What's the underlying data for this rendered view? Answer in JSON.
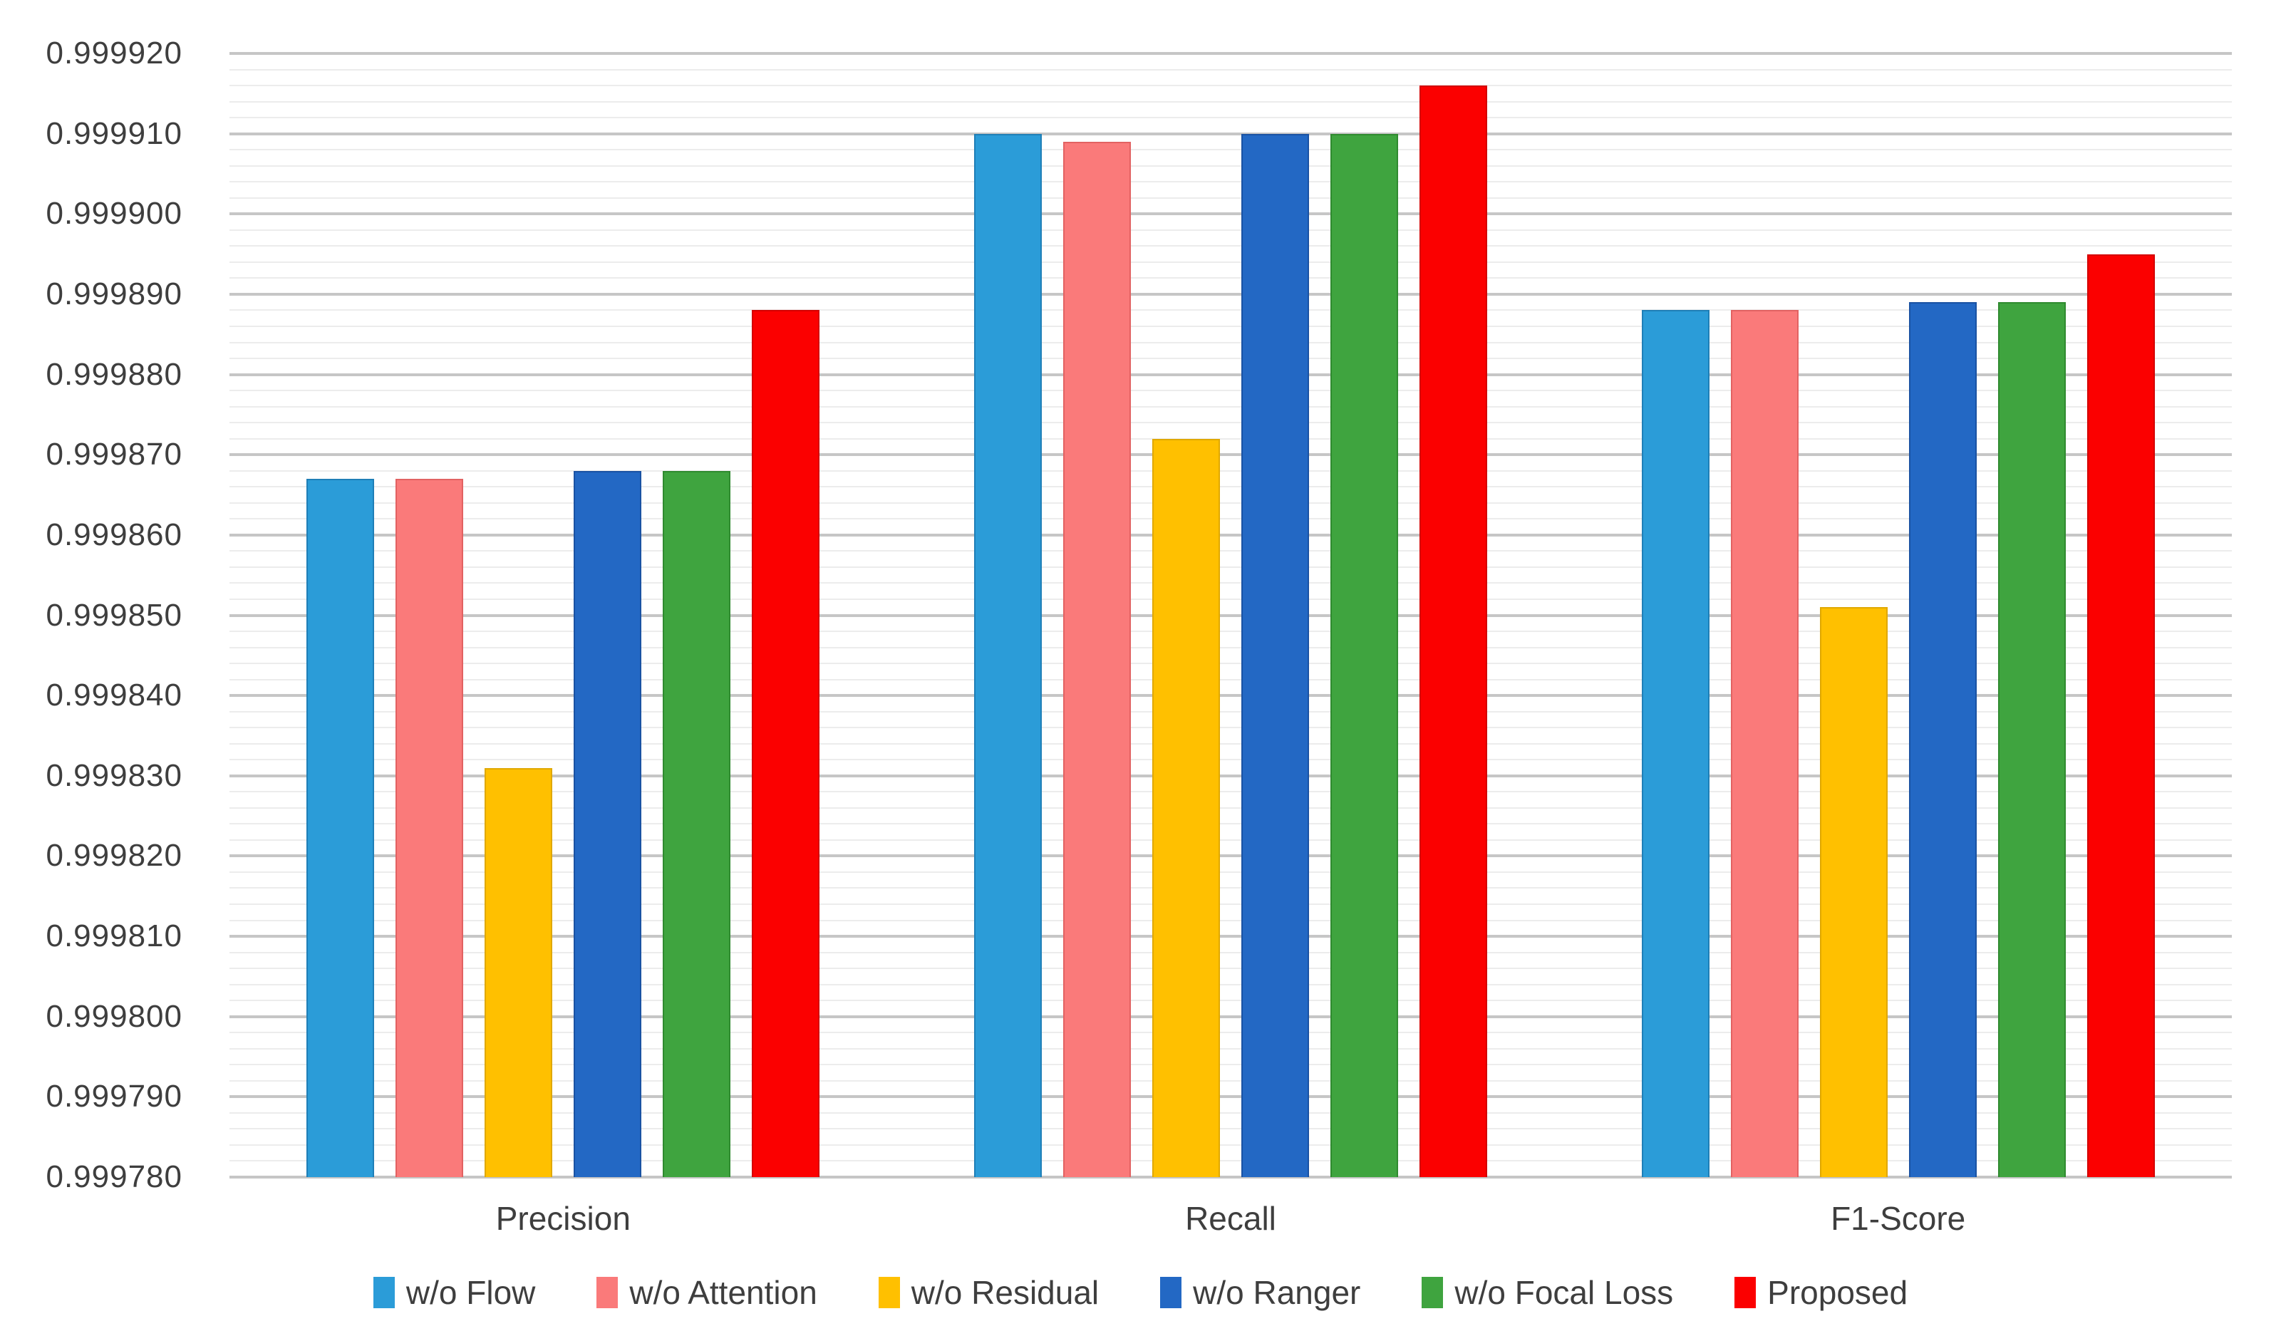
{
  "chart_data": {
    "type": "bar",
    "title": "",
    "categories": [
      "Precision",
      "Recall",
      "F1-Score"
    ],
    "series": [
      {
        "name": "w/o Flow",
        "color": "#2B9CD8",
        "border": "#1F7FB7",
        "values": [
          0.999867,
          0.99991,
          0.999888
        ]
      },
      {
        "name": "w/o Attention",
        "color": "#FA7A7A",
        "border": "#E26262",
        "values": [
          0.999867,
          0.999909,
          0.999888
        ]
      },
      {
        "name": "w/o Residual",
        "color": "#FFC000",
        "border": "#E0A800",
        "values": [
          0.999831,
          0.999872,
          0.999851
        ]
      },
      {
        "name": "w/o Ranger",
        "color": "#2368C4",
        "border": "#1A52A3",
        "values": [
          0.999868,
          0.99991,
          0.999889
        ]
      },
      {
        "name": "w/o Focal Loss",
        "color": "#3FA43F",
        "border": "#2F8A2F",
        "values": [
          0.999868,
          0.99991,
          0.999889
        ]
      },
      {
        "name": "Proposed",
        "color": "#FB0000",
        "border": "#D40000",
        "values": [
          0.999888,
          0.999916,
          0.999895
        ]
      }
    ],
    "y_axis": {
      "min": 0.99978,
      "max": 0.99992,
      "major_step": 1e-05,
      "minor_step": 2e-06,
      "tick_labels": [
        "0.999920",
        "0.999910",
        "0.999900",
        "0.999890",
        "0.999880",
        "0.999870",
        "0.999860",
        "0.999850",
        "0.999840",
        "0.999830",
        "0.999820",
        "0.999810",
        "0.999800",
        "0.999790",
        "0.999780"
      ]
    },
    "legend": {
      "position": "bottom",
      "items": [
        "w/o Flow",
        "w/o Attention",
        "w/o Residual",
        "w/o Ranger",
        "w/o Focal Loss",
        "Proposed"
      ]
    },
    "grid": {
      "major_color": "#C6C6C6",
      "minor_color": "#ECECEC",
      "axis_color": "#BFBFBF"
    },
    "text_color": "#3E3E3E",
    "xlabel": "",
    "ylabel": ""
  }
}
